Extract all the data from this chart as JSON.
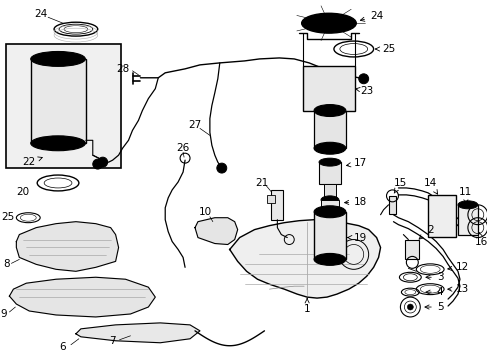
{
  "bg": "#ffffff",
  "lc": "#000000",
  "fig_w": 4.89,
  "fig_h": 3.6,
  "dpi": 100,
  "fs": 7.5
}
